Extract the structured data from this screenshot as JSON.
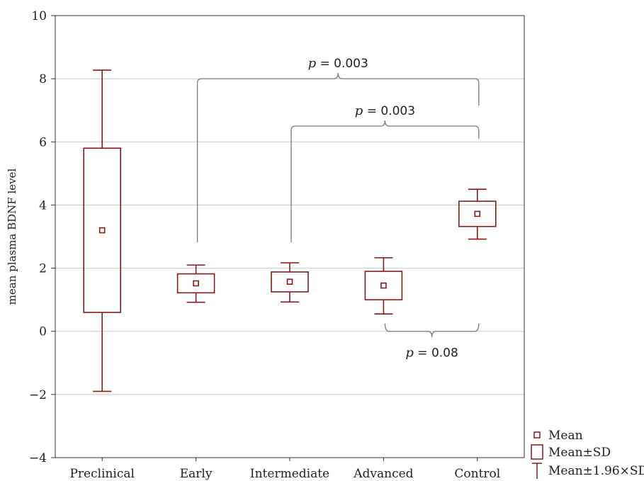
{
  "chart_data": {
    "type": "box",
    "categories": [
      "Preclinical",
      "Early",
      "Intermediate",
      "Advanced",
      "Control"
    ],
    "ylabel": "mean plasma BDNF level",
    "ylim": [
      -4,
      10
    ],
    "yticks": [
      -4,
      -2,
      0,
      2,
      4,
      6,
      8,
      10
    ],
    "grid": true,
    "series": [
      {
        "mean": 3.2,
        "sd_low": 0.6,
        "sd_high": 5.8,
        "ci_low": -1.9,
        "ci_high": 8.27
      },
      {
        "mean": 1.52,
        "sd_low": 1.22,
        "sd_high": 1.82,
        "ci_low": 0.92,
        "ci_high": 2.1
      },
      {
        "mean": 1.57,
        "sd_low": 1.25,
        "sd_high": 1.88,
        "ci_low": 0.93,
        "ci_high": 2.17
      },
      {
        "mean": 1.45,
        "sd_low": 1.0,
        "sd_high": 1.9,
        "ci_low": 0.55,
        "ci_high": 2.33
      },
      {
        "mean": 3.72,
        "sd_low": 3.32,
        "sd_high": 4.12,
        "ci_low": 2.92,
        "ci_high": 4.5
      }
    ],
    "annotations": [
      {
        "p_label": "p",
        "p_value": "= 0.003",
        "from": "Early",
        "to": "Control",
        "y": 8.0,
        "end_y": [
          2.82,
          7.15
        ],
        "side": "above"
      },
      {
        "p_label": "p",
        "p_value": "= 0.003",
        "from": "Intermediate",
        "to": "Control",
        "y": 6.5,
        "end_y": [
          2.82,
          6.1
        ],
        "side": "above"
      },
      {
        "p_label": "p",
        "p_value": "= 0.08",
        "from": "Advanced",
        "to": "Control",
        "y": 0.0,
        "end_y": [
          0.25,
          0.25
        ],
        "side": "below"
      }
    ],
    "legend": {
      "position": "bottom-right",
      "entries": [
        {
          "symbol": "mean",
          "label": "Mean"
        },
        {
          "symbol": "sd",
          "label": "Mean±SD"
        },
        {
          "symbol": "ci",
          "label": "Mean±1.96×SD"
        }
      ]
    },
    "colors": {
      "series": "#8b1a1a",
      "bracket": "#7a7a7a",
      "grid": "#c8c8c8",
      "axis": "#333333"
    }
  }
}
